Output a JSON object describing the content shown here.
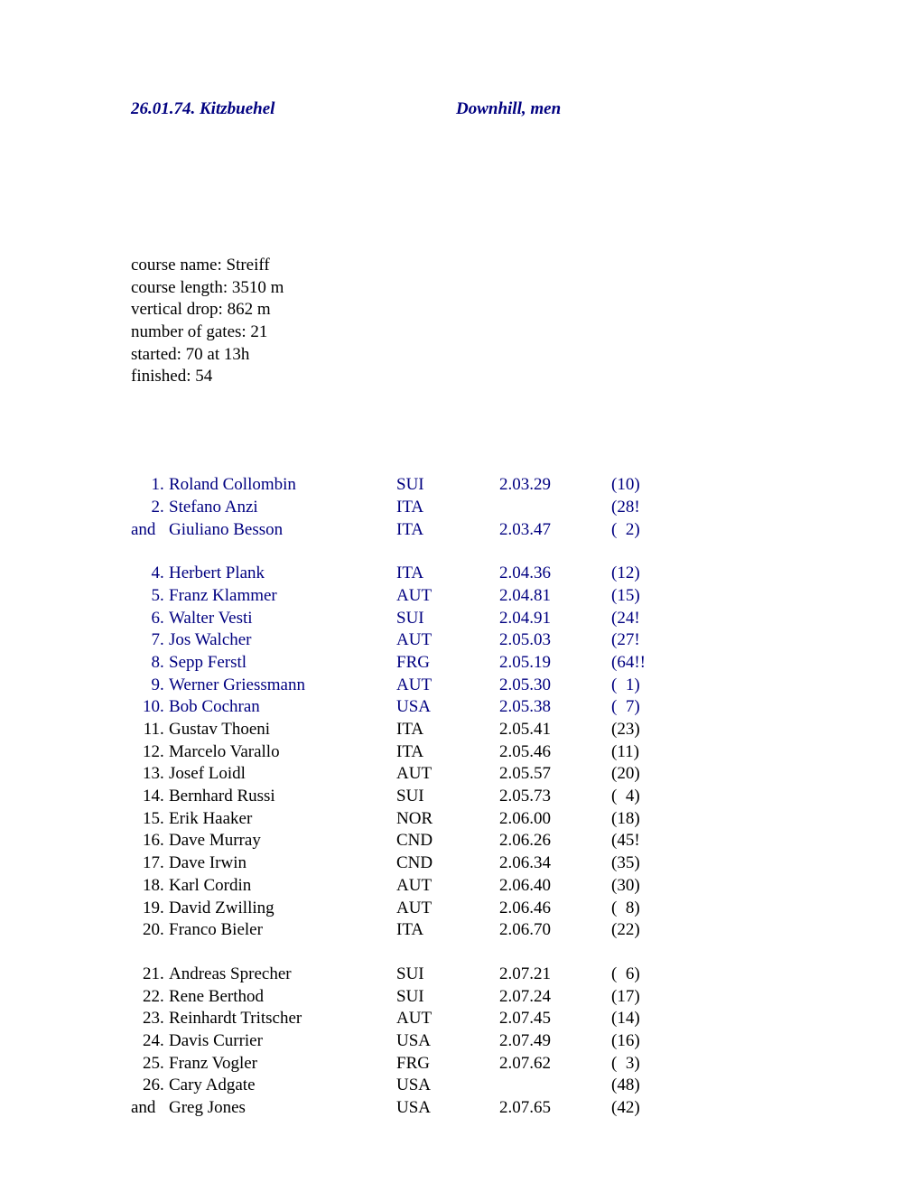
{
  "header": {
    "left": "26.01.74. Kitzbuehel",
    "right": "Downhill, men",
    "color": "#000080"
  },
  "course": {
    "lines": [
      "course name: Streiff",
      "course length: 3510 m",
      "vertical drop: 862 m",
      "number of gates: 21",
      "started: 70 at 13h",
      "finished: 54"
    ]
  },
  "results": [
    {
      "rank": "1",
      "sep": ". ",
      "name": "Roland Collombin",
      "country": "SUI",
      "time": "2.03.29",
      "bib": "(10)",
      "highlight": true
    },
    {
      "rank": "2",
      "sep": ". ",
      "name": "Stefano Anzi",
      "country": "ITA",
      "time": "",
      "bib": "(28!",
      "highlight": true
    },
    {
      "rank": "and ",
      "sep": "",
      "name": "Giuliano Besson",
      "country": "ITA",
      "time": "2.03.47",
      "bib": "(  2)",
      "highlight": true,
      "and": true
    },
    {
      "spacer": true
    },
    {
      "rank": "4",
      "sep": ". ",
      "name": "Herbert Plank",
      "country": "ITA",
      "time": "2.04.36",
      "bib": "(12)",
      "highlight": true
    },
    {
      "rank": "5",
      "sep": ". ",
      "name": "Franz Klammer",
      "country": "AUT",
      "time": "2.04.81",
      "bib": "(15)",
      "highlight": true
    },
    {
      "rank": "6",
      "sep": ". ",
      "name": "Walter Vesti",
      "country": "SUI",
      "time": "2.04.91",
      "bib": "(24!",
      "highlight": true
    },
    {
      "rank": "7",
      "sep": ". ",
      "name": "Jos Walcher",
      "country": "AUT",
      "time": "2.05.03",
      "bib": "(27!",
      "highlight": true
    },
    {
      "rank": "8",
      "sep": ". ",
      "name": "Sepp Ferstl",
      "country": "FRG",
      "time": "2.05.19",
      "bib": "(64!!",
      "highlight": true
    },
    {
      "rank": "9",
      "sep": ". ",
      "name": "Werner Griessmann",
      "country": "AUT",
      "time": "2.05.30",
      "bib": "(  1)",
      "highlight": true
    },
    {
      "rank": "10",
      "sep": ". ",
      "name": "Bob Cochran",
      "country": "USA",
      "time": "2.05.38",
      "bib": "(  7)",
      "highlight": true
    },
    {
      "rank": "11",
      "sep": ". ",
      "name": "Gustav Thoeni",
      "country": "ITA",
      "time": "2.05.41",
      "bib": "(23)",
      "highlight": false
    },
    {
      "rank": "12",
      "sep": ". ",
      "name": "Marcelo Varallo",
      "country": "ITA",
      "time": "2.05.46",
      "bib": "(11)",
      "highlight": false
    },
    {
      "rank": "13",
      "sep": ". ",
      "name": "Josef Loidl",
      "country": "AUT",
      "time": "2.05.57",
      "bib": "(20)",
      "highlight": false
    },
    {
      "rank": "14",
      "sep": ". ",
      "name": "Bernhard Russi",
      "country": "SUI",
      "time": "2.05.73",
      "bib": "(  4)",
      "highlight": false
    },
    {
      "rank": "15",
      "sep": ". ",
      "name": "Erik Haaker",
      "country": "NOR",
      "time": "2.06.00",
      "bib": "(18)",
      "highlight": false
    },
    {
      "rank": "16",
      "sep": ". ",
      "name": "Dave Murray",
      "country": "CND",
      "time": "2.06.26",
      "bib": "(45!",
      "highlight": false
    },
    {
      "rank": "17",
      "sep": ". ",
      "name": "Dave Irwin",
      "country": "CND",
      "time": "2.06.34",
      "bib": "(35)",
      "highlight": false
    },
    {
      "rank": "18",
      "sep": ". ",
      "name": "Karl Cordin",
      "country": "AUT",
      "time": "2.06.40",
      "bib": "(30)",
      "highlight": false
    },
    {
      "rank": "19",
      "sep": ". ",
      "name": "David Zwilling",
      "country": "AUT",
      "time": "2.06.46",
      "bib": "(  8)",
      "highlight": false
    },
    {
      "rank": "20",
      "sep": ". ",
      "name": "Franco Bieler",
      "country": "ITA",
      "time": "2.06.70",
      "bib": "(22)",
      "highlight": false
    },
    {
      "spacer": true
    },
    {
      "rank": "21",
      "sep": ". ",
      "name": "Andreas Sprecher",
      "country": "SUI",
      "time": "2.07.21",
      "bib": "(  6)",
      "highlight": false
    },
    {
      "rank": "22",
      "sep": ". ",
      "name": "Rene Berthod",
      "country": "SUI",
      "time": "2.07.24",
      "bib": "(17)",
      "highlight": false
    },
    {
      "rank": "23",
      "sep": ". ",
      "name": "Reinhardt Tritscher",
      "country": "AUT",
      "time": "2.07.45",
      "bib": "(14)",
      "highlight": false
    },
    {
      "rank": "24",
      "sep": ". ",
      "name": "Davis Currier",
      "country": "USA",
      "time": "2.07.49",
      "bib": "(16)",
      "highlight": false
    },
    {
      "rank": "25",
      "sep": ". ",
      "name": "Franz Vogler",
      "country": "FRG",
      "time": "2.07.62",
      "bib": "(  3)",
      "highlight": false
    },
    {
      "rank": "26",
      "sep": ". ",
      "name": "Cary Adgate",
      "country": "USA",
      "time": "",
      "bib": "(48)",
      "highlight": false
    },
    {
      "rank": "and ",
      "sep": "",
      "name": "Greg Jones",
      "country": "USA",
      "time": "2.07.65",
      "bib": "(42)",
      "highlight": false,
      "and": true
    }
  ]
}
